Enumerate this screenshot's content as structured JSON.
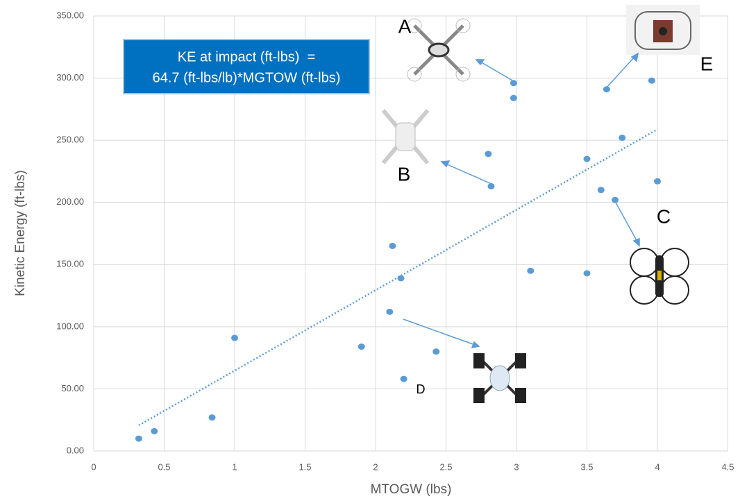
{
  "chart_data": {
    "type": "scatter",
    "x_label": "MTOGW (lbs)",
    "y_label": "Kinetic Energy (ft-lbs)",
    "equation": [
      "KE at impact (ft-lbs)  =",
      "64.7 (ft-lbs/lb)*MGTOW (ft-lbs)"
    ],
    "annotations": [
      "A",
      "B",
      "C",
      "D",
      "E"
    ],
    "color": "#5b9bd5",
    "grid": true,
    "xlim": [
      0,
      4.5
    ],
    "xticks": [
      0,
      0.5,
      1,
      1.5,
      2,
      2.5,
      3,
      3.5,
      4,
      4.5
    ],
    "ylim": [
      0,
      350
    ],
    "yticks": [
      {
        "value": 0,
        "label": "0.00"
      },
      {
        "value": 50,
        "label": "50.00"
      },
      {
        "value": 100,
        "label": "100.00"
      },
      {
        "value": 150,
        "label": "150.00"
      },
      {
        "value": 200,
        "label": "200.00"
      },
      {
        "value": 250,
        "label": "250.00"
      },
      {
        "value": 300,
        "label": "300.00"
      },
      {
        "value": 350,
        "label": "350.00"
      }
    ],
    "x": [
      0.32,
      0.43,
      0.84,
      1.0,
      1.9,
      2.1,
      2.12,
      2.18,
      2.2,
      2.43,
      2.8,
      2.82,
      2.98,
      2.98,
      3.1,
      3.5,
      3.5,
      3.6,
      3.64,
      3.7,
      3.75,
      3.96,
      4.0
    ],
    "values": [
      10,
      16,
      27,
      91,
      84,
      112,
      165,
      139,
      58,
      80,
      239,
      213,
      296,
      284,
      145,
      235,
      143,
      210,
      291,
      202,
      252,
      298,
      217
    ],
    "trendline": {
      "x": [
        0.32,
        4.0
      ],
      "values": [
        20.7,
        258.8
      ]
    }
  }
}
